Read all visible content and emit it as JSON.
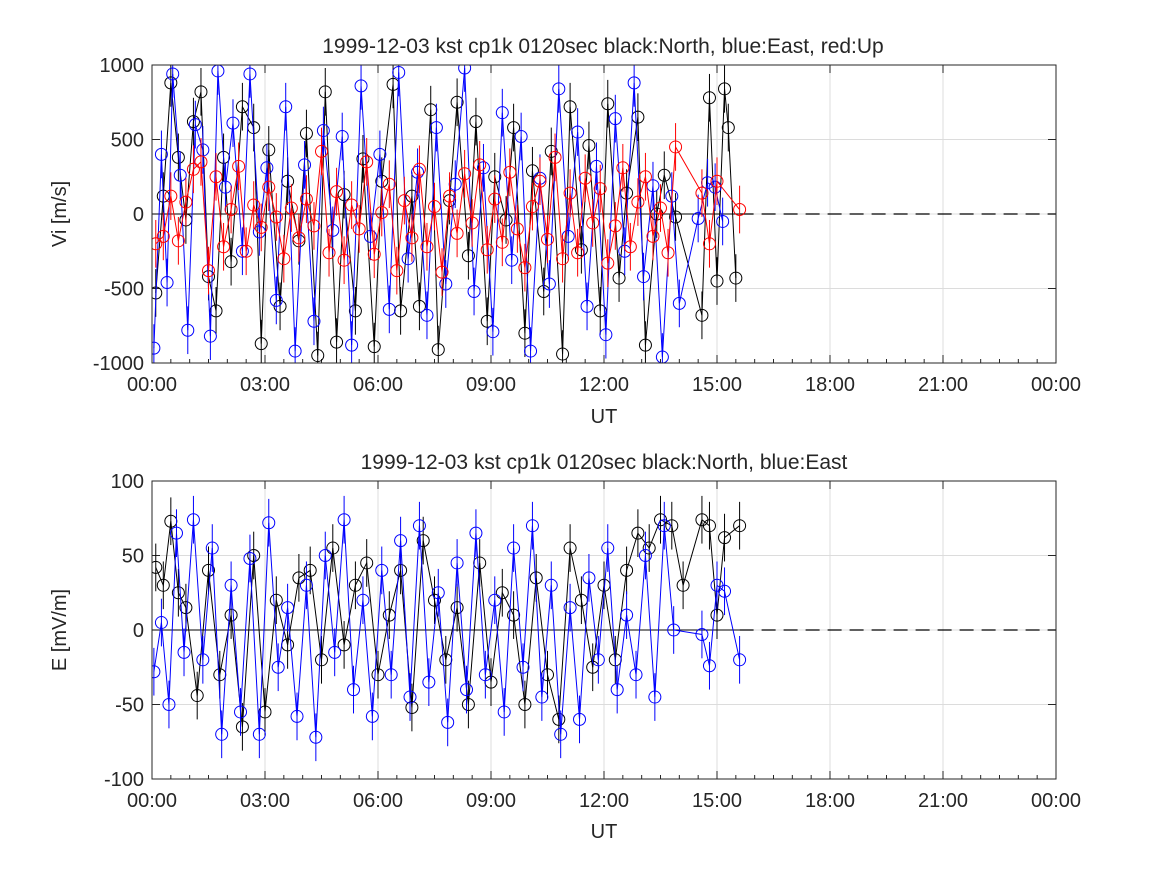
{
  "chart_data": [
    {
      "type": "line",
      "title": "1999-12-03 kst cp1k 0120sec black:North, blue:East, red:Up",
      "xlabel": "UT",
      "ylabel": "Vi [m/s]",
      "xlim_hours": [
        0,
        24
      ],
      "ylim": [
        -1000,
        1000
      ],
      "x_ticks_hours": [
        0,
        3,
        6,
        9,
        12,
        15,
        18,
        21,
        24
      ],
      "x_tick_labels": [
        "00:00",
        "03:00",
        "06:00",
        "09:00",
        "12:00",
        "15:00",
        "18:00",
        "21:00",
        "00:00"
      ],
      "y_ticks": [
        -1000,
        -500,
        0,
        500,
        1000
      ],
      "y_tick_labels": [
        "-1000",
        "-500",
        "0",
        "500",
        "1000"
      ],
      "grid": true,
      "reference_line": {
        "y": 0,
        "style": "dashed",
        "color": "#000000",
        "x_range_hours": [
          15.6,
          24
        ]
      },
      "colors": {
        "North": "#000000",
        "East": "#0000ff",
        "Up": "#ff0000"
      },
      "series": [
        {
          "color": "#000000",
          "x_hours": [
            0.1,
            0.3,
            0.5,
            0.7,
            0.9,
            1.1,
            1.3,
            1.5,
            1.7,
            1.9,
            2.1,
            2.4,
            2.7,
            2.9,
            3.1,
            3.4,
            3.6,
            3.9,
            4.1,
            4.4,
            4.6,
            4.9,
            5.1,
            5.4,
            5.6,
            5.9,
            6.1,
            6.4,
            6.6,
            6.9,
            7.1,
            7.4,
            7.6,
            7.9,
            8.1,
            8.4,
            8.6,
            8.9,
            9.1,
            9.4,
            9.6,
            9.9,
            10.1,
            10.4,
            10.6,
            10.9,
            11.1,
            11.4,
            11.6,
            11.9,
            12.1,
            12.4,
            12.6,
            12.9,
            13.1,
            13.4,
            13.6,
            13.9,
            14.6,
            14.8,
            15.0,
            15.2,
            15.3,
            15.5
          ],
          "values": [
            -530,
            120,
            880,
            380,
            -40,
            620,
            820,
            -420,
            -650,
            380,
            -320,
            720,
            580,
            -870,
            430,
            -620,
            220,
            -180,
            540,
            -950,
            820,
            -860,
            130,
            -650,
            370,
            -890,
            220,
            870,
            -650,
            120,
            -620,
            700,
            -910,
            90,
            750,
            -280,
            620,
            -720,
            250,
            -40,
            580,
            -800,
            290,
            -520,
            420,
            -940,
            720,
            -240,
            460,
            -650,
            740,
            -430,
            140,
            650,
            -880,
            0,
            260,
            -20,
            -680,
            780,
            -450,
            840,
            580,
            -430
          ]
        },
        {
          "color": "#0000ff",
          "x_hours": [
            0.05,
            0.25,
            0.4,
            0.55,
            0.75,
            0.95,
            1.15,
            1.35,
            1.55,
            1.75,
            1.95,
            2.15,
            2.4,
            2.6,
            2.85,
            3.05,
            3.3,
            3.55,
            3.8,
            4.05,
            4.3,
            4.55,
            4.8,
            5.05,
            5.3,
            5.55,
            5.8,
            6.05,
            6.3,
            6.55,
            6.8,
            7.05,
            7.3,
            7.55,
            7.8,
            8.05,
            8.3,
            8.55,
            8.8,
            9.05,
            9.3,
            9.55,
            9.8,
            10.05,
            10.3,
            10.55,
            10.8,
            11.05,
            11.3,
            11.55,
            11.8,
            12.05,
            12.3,
            12.55,
            12.8,
            13.05,
            13.3,
            13.55,
            13.8,
            14.0,
            14.5,
            14.75,
            14.95,
            15.15
          ],
          "values": [
            -900,
            400,
            -460,
            940,
            260,
            -780,
            600,
            430,
            -820,
            960,
            180,
            610,
            -250,
            940,
            -120,
            310,
            -580,
            720,
            -920,
            330,
            -720,
            560,
            -110,
            520,
            -880,
            860,
            -150,
            400,
            -640,
            950,
            -300,
            280,
            -680,
            580,
            -470,
            200,
            980,
            -520,
            310,
            -790,
            680,
            -310,
            520,
            -920,
            240,
            -470,
            840,
            -150,
            550,
            -620,
            320,
            -810,
            640,
            -250,
            880,
            -420,
            190,
            -960,
            120,
            -600,
            -30,
            210,
            180,
            -50
          ]
        },
        {
          "color": "#ff0000",
          "x_hours": [
            0.1,
            0.3,
            0.5,
            0.7,
            0.9,
            1.1,
            1.3,
            1.5,
            1.7,
            1.9,
            2.1,
            2.3,
            2.5,
            2.7,
            2.9,
            3.1,
            3.3,
            3.5,
            3.7,
            3.9,
            4.1,
            4.3,
            4.5,
            4.7,
            4.9,
            5.1,
            5.3,
            5.5,
            5.7,
            5.9,
            6.1,
            6.3,
            6.5,
            6.7,
            6.9,
            7.1,
            7.3,
            7.5,
            7.7,
            7.9,
            8.1,
            8.3,
            8.5,
            8.7,
            8.9,
            9.1,
            9.3,
            9.5,
            9.7,
            9.9,
            10.1,
            10.3,
            10.5,
            10.7,
            10.9,
            11.1,
            11.3,
            11.5,
            11.7,
            11.9,
            12.1,
            12.3,
            12.5,
            12.7,
            12.9,
            13.1,
            13.3,
            13.5,
            13.7,
            13.9,
            14.6,
            14.8,
            15.0,
            15.6
          ],
          "values": [
            -200,
            -150,
            120,
            -180,
            80,
            300,
            350,
            -380,
            250,
            -220,
            30,
            320,
            -250,
            60,
            -90,
            180,
            -20,
            -300,
            40,
            -160,
            100,
            -80,
            420,
            -260,
            150,
            -310,
            60,
            -100,
            350,
            -270,
            10,
            200,
            -380,
            90,
            -160,
            300,
            -220,
            50,
            -390,
            120,
            -130,
            270,
            -60,
            330,
            -240,
            100,
            -190,
            280,
            -100,
            -360,
            50,
            220,
            -170,
            380,
            -300,
            140,
            -260,
            240,
            -60,
            170,
            -330,
            -80,
            310,
            -220,
            80,
            250,
            -150,
            40,
            -260,
            450,
            140,
            -200,
            220,
            30
          ]
        }
      ]
    },
    {
      "type": "line",
      "title": "1999-12-03 kst cp1k 0120sec black:North, blue:East",
      "xlabel": "UT",
      "ylabel": "E [mV/m]",
      "xlim_hours": [
        0,
        24
      ],
      "ylim": [
        -100,
        100
      ],
      "x_ticks_hours": [
        0,
        3,
        6,
        9,
        12,
        15,
        18,
        21,
        24
      ],
      "x_tick_labels": [
        "00:00",
        "03:00",
        "06:00",
        "09:00",
        "12:00",
        "15:00",
        "18:00",
        "21:00",
        "00:00"
      ],
      "y_ticks": [
        -100,
        -50,
        0,
        50,
        100
      ],
      "y_tick_labels": [
        "-100",
        "-50",
        "0",
        "50",
        "100"
      ],
      "grid": true,
      "reference_line": {
        "y": 0,
        "style": "dashed",
        "color": "#000000",
        "x_range_hours": [
          15.6,
          24
        ]
      },
      "colors": {
        "North": "#000000",
        "East": "#0000ff"
      },
      "series": [
        {
          "color": "#000000",
          "x_hours": [
            0.1,
            0.3,
            0.5,
            0.7,
            0.9,
            1.2,
            1.5,
            1.8,
            2.1,
            2.4,
            2.7,
            3.0,
            3.3,
            3.6,
            3.9,
            4.2,
            4.5,
            4.8,
            5.1,
            5.4,
            5.7,
            6.0,
            6.3,
            6.6,
            6.9,
            7.2,
            7.5,
            7.8,
            8.1,
            8.4,
            8.7,
            9.0,
            9.3,
            9.6,
            9.9,
            10.2,
            10.5,
            10.8,
            11.1,
            11.4,
            11.7,
            12.0,
            12.3,
            12.6,
            12.9,
            13.2,
            13.5,
            13.8,
            14.1,
            14.6,
            14.8,
            15.0,
            15.2,
            15.6
          ],
          "values": [
            42,
            30,
            73,
            25,
            15,
            -44,
            40,
            -30,
            10,
            -65,
            50,
            -55,
            20,
            -10,
            35,
            40,
            -20,
            55,
            -10,
            30,
            45,
            -30,
            10,
            40,
            -52,
            60,
            20,
            -20,
            15,
            -50,
            45,
            -35,
            25,
            10,
            -50,
            35,
            -30,
            -60,
            55,
            20,
            -25,
            30,
            -20,
            40,
            65,
            55,
            74,
            70,
            30,
            74,
            70,
            10,
            62,
            70
          ]
        },
        {
          "color": "#0000ff",
          "x_hours": [
            0.05,
            0.25,
            0.45,
            0.65,
            0.85,
            1.1,
            1.35,
            1.6,
            1.85,
            2.1,
            2.35,
            2.6,
            2.85,
            3.1,
            3.35,
            3.6,
            3.85,
            4.1,
            4.35,
            4.6,
            4.85,
            5.1,
            5.35,
            5.6,
            5.85,
            6.1,
            6.35,
            6.6,
            6.85,
            7.1,
            7.35,
            7.6,
            7.85,
            8.1,
            8.35,
            8.6,
            8.85,
            9.1,
            9.35,
            9.6,
            9.85,
            10.1,
            10.35,
            10.6,
            10.85,
            11.1,
            11.35,
            11.6,
            11.85,
            12.1,
            12.35,
            12.6,
            12.85,
            13.1,
            13.35,
            13.6,
            13.85,
            14.6,
            14.8,
            15.0,
            15.2,
            15.6
          ],
          "values": [
            -28,
            5,
            -50,
            65,
            -15,
            74,
            -20,
            55,
            -70,
            30,
            -55,
            48,
            -70,
            72,
            -25,
            15,
            -58,
            30,
            -72,
            50,
            -15,
            74,
            -40,
            20,
            -58,
            40,
            -30,
            60,
            -45,
            70,
            -35,
            25,
            -62,
            45,
            -40,
            65,
            -30,
            20,
            -55,
            55,
            -25,
            70,
            -45,
            30,
            -70,
            15,
            -60,
            35,
            -20,
            55,
            -40,
            10,
            -30,
            50,
            -45,
            70,
            0,
            -3,
            -24,
            30,
            26,
            -20
          ]
        }
      ]
    }
  ]
}
